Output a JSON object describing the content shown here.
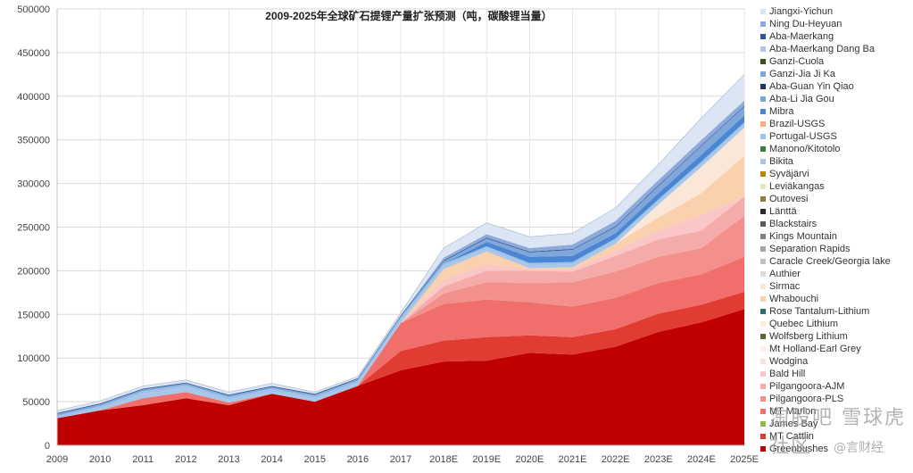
{
  "chart_data": {
    "type": "area",
    "stacked": true,
    "title": "2009-2025年全球矿石提锂产量扩张预测（吨，碳酸锂当量）",
    "xlabel": "",
    "ylabel": "",
    "ylim": [
      0,
      500000
    ],
    "yticks": [
      0,
      50000,
      100000,
      150000,
      200000,
      250000,
      300000,
      350000,
      400000,
      450000,
      500000
    ],
    "ytick_labels": [
      "0",
      "50000",
      "100000",
      "150000",
      "200000",
      "250000",
      "300000",
      "350000",
      "400000",
      "450000",
      "500000"
    ],
    "grid": true,
    "legend_position": "right",
    "x": [
      "2009",
      "2010",
      "2011",
      "2012",
      "2013",
      "2014",
      "2015",
      "2016",
      "2017",
      "2018E",
      "2019E",
      "2020E",
      "2021E",
      "2022E",
      "2023E",
      "2024E",
      "2025E"
    ],
    "series": [
      {
        "name": "Greenbushes",
        "color": "#c00000",
        "values": [
          31000,
          40000,
          46000,
          54000,
          46000,
          59000,
          50000,
          68000,
          86000,
          96000,
          97000,
          106000,
          104000,
          113000,
          130000,
          141000,
          156000
        ]
      },
      {
        "name": "MT Cattlin",
        "color": "#e03c31",
        "values": [
          0,
          0,
          0,
          0,
          0,
          0,
          0,
          0,
          22000,
          24000,
          27000,
          20000,
          20000,
          20000,
          21000,
          20000,
          20000
        ]
      },
      {
        "name": "James Bay",
        "color": "#8fbc4a",
        "values": [
          0,
          0,
          0,
          0,
          0,
          0,
          0,
          0,
          0,
          0,
          0,
          0,
          0,
          0,
          0,
          0,
          0
        ]
      },
      {
        "name": "MT Marion",
        "color": "#f06f6b",
        "values": [
          0,
          0,
          8000,
          7000,
          3000,
          0,
          0,
          0,
          32000,
          42000,
          43000,
          38000,
          35000,
          36000,
          35000,
          35000,
          40000
        ]
      },
      {
        "name": "Pilgangoora-PLS",
        "color": "#f4908c",
        "values": [
          0,
          0,
          0,
          0,
          0,
          0,
          0,
          0,
          0,
          12000,
          20000,
          22000,
          28000,
          30000,
          30000,
          30000,
          47000
        ]
      },
      {
        "name": "Pilgangoora-AJM",
        "color": "#f6abab",
        "values": [
          0,
          0,
          0,
          0,
          0,
          0,
          0,
          0,
          0,
          8000,
          13000,
          14000,
          12000,
          18000,
          20000,
          20000,
          22000
        ]
      },
      {
        "name": "Bald Hill",
        "color": "#fac6c6",
        "values": [
          0,
          0,
          0,
          0,
          0,
          0,
          0,
          0,
          0,
          8000,
          8000,
          2000,
          3000,
          6000,
          10000,
          18000,
          0
        ]
      },
      {
        "name": "Wodgina",
        "color": "#fce0e0",
        "values": [
          0,
          0,
          0,
          0,
          0,
          0,
          0,
          0,
          0,
          0,
          0,
          0,
          0,
          0,
          0,
          0,
          0
        ]
      },
      {
        "name": "Mt Holland-Earl Grey",
        "color": "#fdeee8",
        "values": [
          0,
          0,
          0,
          0,
          0,
          0,
          0,
          0,
          0,
          0,
          0,
          0,
          0,
          0,
          0,
          0,
          0
        ]
      },
      {
        "name": "Wolfsberg Lithium",
        "color": "#556b2f",
        "values": [
          0,
          0,
          0,
          0,
          0,
          0,
          0,
          0,
          0,
          0,
          0,
          0,
          0,
          0,
          0,
          0,
          0
        ]
      },
      {
        "name": "Quebec Lithium",
        "color": "#f7efd8",
        "values": [
          0,
          0,
          0,
          0,
          0,
          0,
          0,
          0,
          0,
          0,
          0,
          0,
          0,
          0,
          0,
          0,
          0
        ]
      },
      {
        "name": "Rose Tantalum-Lithium",
        "color": "#2e6e6e",
        "values": [
          0,
          0,
          0,
          0,
          0,
          0,
          0,
          0,
          0,
          0,
          0,
          0,
          0,
          0,
          0,
          0,
          0
        ]
      },
      {
        "name": "Whabouchi",
        "color": "#fad1ac",
        "values": [
          0,
          0,
          0,
          0,
          0,
          0,
          0,
          0,
          0,
          12000,
          14000,
          1000,
          2000,
          8000,
          15000,
          25000,
          47000
        ]
      },
      {
        "name": "Sirmac",
        "color": "#fbe7d7",
        "values": [
          0,
          0,
          0,
          0,
          0,
          0,
          0,
          0,
          0,
          0,
          0,
          0,
          0,
          0,
          15000,
          30000,
          32000
        ]
      },
      {
        "name": "Authier",
        "color": "#dadada",
        "values": [
          0,
          0,
          0,
          0,
          0,
          0,
          0,
          0,
          0,
          0,
          0,
          0,
          0,
          0,
          0,
          0,
          0
        ]
      },
      {
        "name": "Caracle Creek/Georgia lake",
        "color": "#c0c0c0",
        "values": [
          0,
          0,
          0,
          0,
          0,
          0,
          0,
          0,
          0,
          0,
          0,
          0,
          0,
          0,
          0,
          0,
          0
        ]
      },
      {
        "name": "Separation Rapids",
        "color": "#a5a5a5",
        "values": [
          0,
          0,
          0,
          0,
          0,
          0,
          0,
          0,
          0,
          0,
          0,
          0,
          0,
          0,
          0,
          0,
          0
        ]
      },
      {
        "name": "Kings Mountain",
        "color": "#808080",
        "values": [
          0,
          0,
          0,
          0,
          0,
          0,
          0,
          0,
          0,
          0,
          0,
          0,
          0,
          0,
          0,
          0,
          0
        ]
      },
      {
        "name": "Blackstairs",
        "color": "#5a5a5a",
        "values": [
          0,
          0,
          0,
          0,
          0,
          0,
          0,
          0,
          0,
          0,
          0,
          0,
          0,
          0,
          0,
          0,
          0
        ]
      },
      {
        "name": "Länttä",
        "color": "#2b2b2b",
        "values": [
          0,
          0,
          0,
          0,
          0,
          0,
          0,
          0,
          0,
          0,
          0,
          0,
          0,
          0,
          0,
          0,
          0
        ]
      },
      {
        "name": "Outovesi",
        "color": "#8b7d3a",
        "values": [
          0,
          0,
          0,
          0,
          0,
          0,
          0,
          0,
          0,
          0,
          0,
          0,
          0,
          0,
          0,
          0,
          0
        ]
      },
      {
        "name": "Leviäkangas",
        "color": "#e3e3c0",
        "values": [
          0,
          0,
          0,
          0,
          0,
          0,
          0,
          0,
          0,
          0,
          0,
          0,
          0,
          0,
          0,
          0,
          0
        ]
      },
      {
        "name": "Syväjärvi",
        "color": "#b8860b",
        "values": [
          0,
          0,
          0,
          0,
          0,
          0,
          0,
          0,
          0,
          0,
          0,
          0,
          0,
          0,
          0,
          0,
          0
        ]
      },
      {
        "name": "Bikita",
        "color": "#a9c6e8",
        "values": [
          0,
          2000,
          5000,
          5000,
          3000,
          3000,
          3000,
          3000,
          3000,
          3000,
          3000,
          3000,
          3000,
          3000,
          3000,
          3000,
          3000
        ]
      },
      {
        "name": "Manono/Kitotolo",
        "color": "#3a7d44",
        "values": [
          0,
          0,
          0,
          0,
          0,
          0,
          0,
          0,
          0,
          0,
          0,
          0,
          0,
          0,
          0,
          0,
          0
        ]
      },
      {
        "name": "Portugal-USGS",
        "color": "#9fc3e7",
        "values": [
          3000,
          3000,
          3000,
          3000,
          3000,
          3000,
          3000,
          3000,
          3000,
          3000,
          3000,
          3000,
          3000,
          3000,
          3000,
          3000,
          3000
        ]
      },
      {
        "name": "Brazil-USGS",
        "color": "#f4b183",
        "values": [
          0,
          0,
          0,
          0,
          0,
          0,
          0,
          0,
          0,
          0,
          0,
          0,
          0,
          0,
          0,
          0,
          0
        ]
      },
      {
        "name": "Mibra",
        "color": "#4a86d4",
        "values": [
          0,
          0,
          0,
          0,
          0,
          0,
          0,
          0,
          0,
          0,
          5000,
          7000,
          7000,
          6000,
          7000,
          8000,
          8000
        ]
      },
      {
        "name": "Aba-Li Jia Gou",
        "color": "#74a7e0",
        "values": [
          0,
          0,
          0,
          0,
          0,
          0,
          0,
          0,
          0,
          0,
          0,
          0,
          0,
          0,
          0,
          0,
          0
        ]
      },
      {
        "name": "Aba-Guan Yin Qiao",
        "color": "#1f3864",
        "values": [
          0,
          0,
          0,
          0,
          0,
          0,
          0,
          0,
          0,
          0,
          0,
          0,
          0,
          0,
          0,
          0,
          0
        ]
      },
      {
        "name": "Ganzi-Jia Ji Ka",
        "color": "#7fa7d9",
        "values": [
          2000,
          2000,
          2000,
          2000,
          2000,
          2000,
          2000,
          2000,
          2000,
          3000,
          4000,
          5000,
          7000,
          7000,
          8000,
          10000,
          10000
        ]
      },
      {
        "name": "Ganzi-Cuola",
        "color": "#3e4f22",
        "values": [
          0,
          0,
          0,
          0,
          0,
          0,
          0,
          0,
          0,
          0,
          0,
          0,
          0,
          0,
          0,
          0,
          0
        ]
      },
      {
        "name": "Aba-Maerkang Dang Ba",
        "color": "#b4c7e7",
        "values": [
          0,
          0,
          0,
          0,
          0,
          0,
          0,
          0,
          0,
          0,
          0,
          0,
          0,
          0,
          0,
          0,
          0
        ]
      },
      {
        "name": "Aba-Maerkang",
        "color": "#2f5597",
        "values": [
          1000,
          1000,
          1000,
          1000,
          1000,
          1000,
          1000,
          1000,
          1000,
          1000,
          1000,
          1000,
          1000,
          1000,
          1000,
          1000,
          1000
        ]
      },
      {
        "name": "Ning Du-Heyuan",
        "color": "#8eaadb",
        "values": [
          0,
          0,
          0,
          0,
          0,
          0,
          0,
          0,
          0,
          3000,
          4000,
          4000,
          5000,
          6000,
          6000,
          6000,
          6000
        ]
      },
      {
        "name": "Jiangxi-Yichun",
        "color": "#dbe5f3",
        "values": [
          3000,
          3000,
          3000,
          3000,
          3000,
          3000,
          2000,
          2000,
          3000,
          11000,
          13000,
          13000,
          13000,
          15000,
          18000,
          25000,
          30000
        ]
      }
    ]
  },
  "watermark": {
    "line1": "淘股吧 雪球虎社区",
    "line2": "@言财经"
  }
}
